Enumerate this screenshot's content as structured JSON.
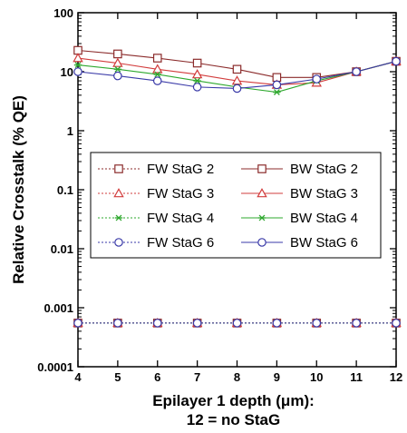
{
  "chart_data": {
    "type": "line",
    "xlabel_line1": "Epilayer 1 depth (μm):",
    "xlabel_line2": "12 = no StaG",
    "ylabel": "Relative Crosstalk (% QE)",
    "yscale": "log",
    "ylim": [
      0.0001,
      100
    ],
    "xlim": [
      4,
      12
    ],
    "x_ticks": [
      4,
      5,
      6,
      7,
      8,
      9,
      10,
      11,
      12
    ],
    "y_ticks": [
      "100",
      "10",
      "1",
      "0.1",
      "0.01",
      "0.001",
      "0.0001"
    ],
    "x": [
      4,
      5,
      6,
      7,
      8,
      9,
      10,
      11,
      12
    ],
    "legend_position": "center-left",
    "series": [
      {
        "name": "FW StaG 2",
        "color": "#8b2b2b",
        "marker": "square",
        "dashed": true,
        "values": [
          0.00055,
          0.00055,
          0.00055,
          0.00055,
          0.00055,
          0.00055,
          0.00055,
          0.00055,
          0.00055
        ]
      },
      {
        "name": "FW StaG 3",
        "color": "#d23c3c",
        "marker": "triangle",
        "dashed": true,
        "values": [
          0.00055,
          0.00055,
          0.00055,
          0.00055,
          0.00055,
          0.00055,
          0.00055,
          0.00055,
          0.00055
        ]
      },
      {
        "name": "FW StaG 4",
        "color": "#2ea82e",
        "marker": "asterisk",
        "dashed": true,
        "values": [
          0.00055,
          0.00055,
          0.00055,
          0.00055,
          0.00055,
          0.00055,
          0.00055,
          0.00055,
          0.00055
        ]
      },
      {
        "name": "FW StaG 6",
        "color": "#3a3aa8",
        "marker": "circle",
        "dashed": true,
        "values": [
          0.00055,
          0.00055,
          0.00055,
          0.00055,
          0.00055,
          0.00055,
          0.00055,
          0.00055,
          0.00055
        ]
      },
      {
        "name": "BW StaG 2",
        "color": "#8b2b2b",
        "marker": "square",
        "dashed": false,
        "values": [
          23,
          20,
          17,
          14,
          11,
          8,
          8,
          10,
          15
        ]
      },
      {
        "name": "BW StaG 3",
        "color": "#d23c3c",
        "marker": "triangle",
        "dashed": false,
        "values": [
          17,
          14,
          11,
          9,
          7,
          6,
          6.5,
          10,
          15
        ]
      },
      {
        "name": "BW StaG 4",
        "color": "#2ea82e",
        "marker": "asterisk",
        "dashed": false,
        "values": [
          13,
          11,
          9,
          7,
          5.5,
          4.5,
          7,
          10,
          15
        ]
      },
      {
        "name": "BW StaG 6",
        "color": "#3a3aa8",
        "marker": "circle",
        "dashed": false,
        "values": [
          10,
          8.5,
          7,
          5.5,
          5.2,
          6,
          7.5,
          10,
          15
        ]
      }
    ]
  }
}
